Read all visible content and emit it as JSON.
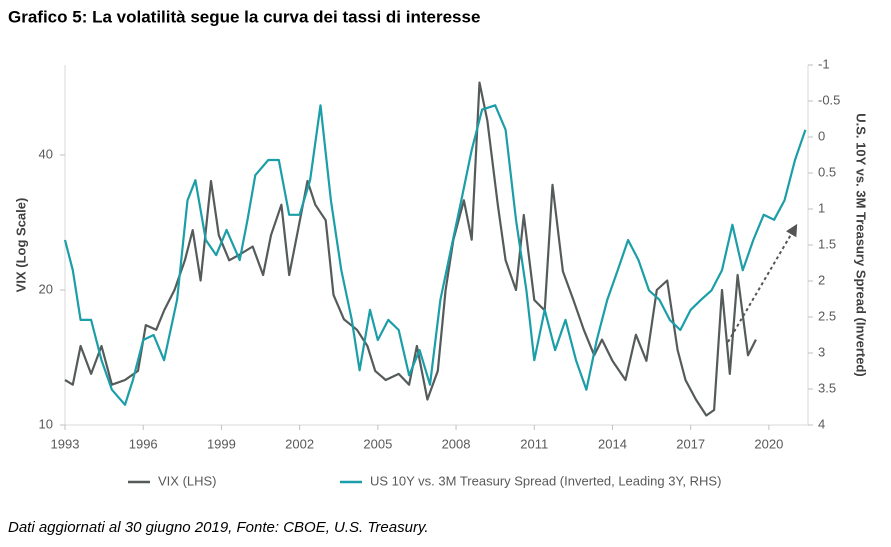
{
  "chart_data": {
    "type": "line",
    "title": "Grafico 5: La volatilità segue la curva dei tassi di interesse",
    "footnote": "Dati aggiornati al 30 giugno 2019, Fonte: CBOE, U.S. Treasury.",
    "y_label": "VIX (Log Scale)",
    "y2_label": "U.S. 10Y vs. 3M Treasury Spread (Inverted)",
    "log_y": true,
    "y2_inverted": true,
    "grid": false,
    "legend": "bottom",
    "xlim": [
      1993,
      2021.5
    ],
    "xticks": [
      1993,
      1996,
      1999,
      2002,
      2005,
      2008,
      2011,
      2014,
      2017,
      2020
    ],
    "ylim": [
      10,
      63.5
    ],
    "yticks": [
      10,
      20,
      40
    ],
    "y2lim": [
      -1,
      4
    ],
    "y2ticks": [
      -1,
      -0.5,
      0,
      0.5,
      1,
      1.5,
      2,
      2.5,
      3,
      3.5,
      4
    ],
    "series": [
      {
        "name": "VIX (LHS)",
        "color": "#555b5b",
        "x": [
          1993.0,
          1993.3,
          1993.6,
          1994.0,
          1994.4,
          1994.8,
          1995.3,
          1995.8,
          1996.1,
          1996.5,
          1996.8,
          1997.2,
          1997.6,
          1997.9,
          1998.2,
          1998.6,
          1998.9,
          1999.3,
          1999.7,
          2000.2,
          2000.6,
          2000.9,
          2001.3,
          2001.6,
          2001.9,
          2002.3,
          2002.6,
          2003.0,
          2003.3,
          2003.7,
          2004.2,
          2004.6,
          2004.9,
          2005.3,
          2005.8,
          2006.2,
          2006.5,
          2006.9,
          2007.3,
          2007.6,
          2007.9,
          2008.3,
          2008.6,
          2008.9,
          2009.2,
          2009.6,
          2009.9,
          2010.3,
          2010.6,
          2011.0,
          2011.4,
          2011.7,
          2012.1,
          2012.5,
          2012.9,
          2013.3,
          2013.6,
          2014.0,
          2014.5,
          2014.9,
          2015.3,
          2015.7,
          2016.1,
          2016.5,
          2016.8,
          2017.2,
          2017.6,
          2017.9,
          2018.2,
          2018.5,
          2018.8,
          2019.2,
          2019.5
        ],
        "values": [
          12.6,
          12.3,
          15,
          13,
          15,
          12.3,
          12.6,
          13.2,
          16.7,
          16.3,
          18,
          20,
          23.3,
          27.2,
          21,
          35,
          26.5,
          23.3,
          24,
          25,
          21.6,
          26.5,
          31,
          21.6,
          26.5,
          35,
          31,
          28.6,
          19.5,
          17.2,
          16.3,
          15,
          13.2,
          12.6,
          13,
          12.3,
          15,
          11.4,
          13.2,
          20,
          25.9,
          31.7,
          25.9,
          58,
          47.8,
          31,
          23.3,
          20,
          29.4,
          19,
          18,
          34.3,
          22,
          19,
          16.3,
          14.3,
          15.5,
          13.9,
          12.6,
          15.9,
          13.9,
          20,
          21,
          14.7,
          12.6,
          11.4,
          10.5,
          10.8,
          20,
          13,
          21.6,
          14.3,
          15.5
        ]
      },
      {
        "name": "US 10Y vs. 3M Treasury Spread (Inverted, Leading 3Y, RHS)",
        "color": "#1b9ea8",
        "axis": "y2",
        "x": [
          1993.0,
          1993.3,
          1993.6,
          1994.0,
          1994.4,
          1994.8,
          1995.3,
          1995.6,
          1996.0,
          1996.4,
          1996.8,
          1997.3,
          1997.7,
          1998.0,
          1998.4,
          1998.8,
          1999.2,
          1999.7,
          2000.0,
          2000.3,
          2000.8,
          2001.2,
          2001.6,
          2002.0,
          2002.4,
          2002.8,
          2003.2,
          2003.6,
          2004.0,
          2004.3,
          2004.7,
          2005.0,
          2005.4,
          2005.8,
          2006.2,
          2006.6,
          2007.0,
          2007.4,
          2007.8,
          2008.2,
          2008.6,
          2009.0,
          2009.5,
          2009.9,
          2010.3,
          2010.7,
          2011.0,
          2011.4,
          2011.8,
          2012.2,
          2012.6,
          2013.0,
          2013.4,
          2013.8,
          2014.2,
          2014.6,
          2015.0,
          2015.4,
          2015.8,
          2016.2,
          2016.6,
          2017.0,
          2017.4,
          2017.8,
          2018.2,
          2018.6,
          2019.0,
          2019.4,
          2019.8,
          2020.2,
          2020.6,
          2021.0,
          2021.4
        ],
        "values": [
          1.43,
          1.85,
          2.54,
          2.54,
          3.1,
          3.51,
          3.72,
          3.38,
          2.82,
          2.75,
          3.1,
          2.26,
          0.88,
          0.6,
          1.43,
          1.64,
          1.29,
          1.71,
          1.15,
          0.53,
          0.32,
          0.32,
          1.08,
          1.08,
          0.6,
          -0.44,
          0.88,
          1.85,
          2.54,
          3.24,
          2.4,
          2.82,
          2.54,
          2.68,
          3.31,
          2.96,
          3.44,
          2.26,
          1.57,
          0.88,
          0.18,
          -0.38,
          -0.44,
          -0.1,
          1.15,
          2.13,
          3.1,
          2.4,
          2.96,
          2.54,
          3.1,
          3.51,
          2.82,
          2.26,
          1.85,
          1.43,
          1.71,
          2.13,
          2.26,
          2.54,
          2.68,
          2.4,
          2.26,
          2.13,
          1.85,
          1.22,
          1.85,
          1.43,
          1.08,
          1.15,
          0.88,
          0.32,
          -0.1
        ]
      }
    ]
  }
}
